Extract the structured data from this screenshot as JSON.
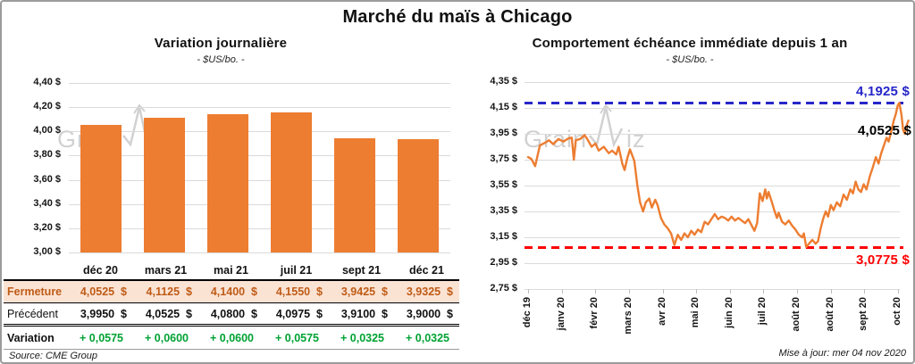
{
  "page": {
    "title": "Marché du maïs à Chicago"
  },
  "watermark": {
    "text_left": "Grain",
    "text_right": "iz"
  },
  "notes": {
    "source": "Source: CME Group",
    "updated": "Mise à jour: mer 04 nov 2020"
  },
  "colors": {
    "accent_orange": "#ED7D31",
    "high_blue": "#2626C9",
    "low_red": "#FF0000",
    "variation_green": "#00A233",
    "fermeture_bg": "#FBE3D4",
    "fermeture_text": "#BF5B16",
    "gridline": "#dadada"
  },
  "table": {
    "columns": [
      "déc 20",
      "mars 21",
      "mai 21",
      "juil 21",
      "sept 21",
      "déc 21"
    ],
    "rows": [
      {
        "key": "fermeture",
        "label": "Fermeture",
        "values": [
          "4,0525  $",
          "4,1125  $",
          "4,1400  $",
          "4,1550  $",
          "3,9425  $",
          "3,9325  $"
        ]
      },
      {
        "key": "precedent",
        "label": "Précédent",
        "values": [
          "3,9950  $",
          "4,0525  $",
          "4,0800  $",
          "4,0975  $",
          "3,9100  $",
          "3,9000  $"
        ]
      },
      {
        "key": "variation",
        "label": "Variation",
        "values": [
          "+ 0,0575",
          "+ 0,0600",
          "+ 0,0600",
          "+ 0,0575",
          "+ 0,0325",
          "+ 0,0325"
        ]
      }
    ]
  },
  "chart_data": [
    {
      "type": "bar",
      "title": "Variation journalière",
      "subtitle": "- $US/bo. -",
      "categories": [
        "déc 20",
        "mars 21",
        "mai 21",
        "juil 21",
        "sept 21",
        "déc 21"
      ],
      "values": [
        4.0525,
        4.1125,
        4.14,
        4.155,
        3.9425,
        3.9325
      ],
      "ylim": [
        3.0,
        4.4
      ],
      "ytick_labels": [
        "4,40 $",
        "4,20 $",
        "4,00 $",
        "3,80 $",
        "3,60 $",
        "3,40 $",
        "3,20 $",
        "3,00 $"
      ],
      "grid": true,
      "bar_color": "#ED7D31"
    },
    {
      "type": "line",
      "title": "Comportement échéance immédiate depuis 1 an",
      "subtitle": "- $US/bo. -",
      "x_tick_labels": [
        "déc 19",
        "janv 20",
        "févr 20",
        "mars 20",
        "avr 20",
        "mai 20",
        "juin 20",
        "juil 20",
        "août 20",
        "août 20",
        "sept 20",
        "oct 20"
      ],
      "ylim": [
        2.75,
        4.35
      ],
      "ytick_labels": [
        "4,35 $",
        "4,15 $",
        "3,95 $",
        "3,75 $",
        "3,55 $",
        "3,35 $",
        "3,15 $",
        "2,95 $",
        "2,75 $"
      ],
      "grid": true,
      "line_color": "#ED7D31",
      "high_line": {
        "value": 4.1925,
        "label": "4,1925 $",
        "color": "#2626C9"
      },
      "low_line": {
        "value": 3.0775,
        "label": "3,0775 $",
        "color": "#FF0000"
      },
      "last_label": {
        "value": 4.0525,
        "label": "4,0525 $",
        "color": "#000000"
      },
      "points": [
        [
          0,
          3.77
        ],
        [
          0.1,
          3.755
        ],
        [
          0.21,
          3.7
        ],
        [
          0.35,
          3.86
        ],
        [
          0.5,
          3.88
        ],
        [
          0.62,
          3.9
        ],
        [
          0.75,
          3.87
        ],
        [
          0.9,
          3.91
        ],
        [
          1.05,
          3.89
        ],
        [
          1.2,
          3.915
        ],
        [
          1.3,
          3.92
        ],
        [
          1.36,
          3.75
        ],
        [
          1.42,
          3.9
        ],
        [
          1.55,
          3.91
        ],
        [
          1.62,
          3.925
        ],
        [
          1.68,
          3.94
        ],
        [
          1.76,
          3.91
        ],
        [
          1.89,
          3.85
        ],
        [
          2.0,
          3.875
        ],
        [
          2.1,
          3.82
        ],
        [
          2.25,
          3.85
        ],
        [
          2.4,
          3.8
        ],
        [
          2.5,
          3.82
        ],
        [
          2.62,
          3.79
        ],
        [
          2.69,
          3.85
        ],
        [
          2.8,
          3.72
        ],
        [
          2.87,
          3.67
        ],
        [
          2.95,
          3.76
        ],
        [
          3.03,
          3.83
        ],
        [
          3.1,
          3.78
        ],
        [
          3.16,
          3.74
        ],
        [
          3.25,
          3.55
        ],
        [
          3.33,
          3.42
        ],
        [
          3.42,
          3.35
        ],
        [
          3.5,
          3.42
        ],
        [
          3.6,
          3.45
        ],
        [
          3.68,
          3.38
        ],
        [
          3.78,
          3.44
        ],
        [
          3.85,
          3.4
        ],
        [
          3.95,
          3.3
        ],
        [
          4.05,
          3.25
        ],
        [
          4.15,
          3.22
        ],
        [
          4.25,
          3.18
        ],
        [
          4.35,
          3.09
        ],
        [
          4.45,
          3.17
        ],
        [
          4.55,
          3.13
        ],
        [
          4.65,
          3.18
        ],
        [
          4.75,
          3.15
        ],
        [
          4.85,
          3.2
        ],
        [
          4.95,
          3.17
        ],
        [
          5.05,
          3.21
        ],
        [
          5.15,
          3.19
        ],
        [
          5.25,
          3.27
        ],
        [
          5.35,
          3.25
        ],
        [
          5.45,
          3.29
        ],
        [
          5.55,
          3.33
        ],
        [
          5.65,
          3.29
        ],
        [
          5.75,
          3.31
        ],
        [
          5.85,
          3.3
        ],
        [
          5.95,
          3.28
        ],
        [
          6.05,
          3.31
        ],
        [
          6.15,
          3.28
        ],
        [
          6.25,
          3.3
        ],
        [
          6.35,
          3.28
        ],
        [
          6.45,
          3.26
        ],
        [
          6.55,
          3.29
        ],
        [
          6.65,
          3.24
        ],
        [
          6.73,
          3.2
        ],
        [
          6.81,
          3.26
        ],
        [
          6.89,
          3.49
        ],
        [
          6.97,
          3.43
        ],
        [
          7.05,
          3.52
        ],
        [
          7.1,
          3.45
        ],
        [
          7.15,
          3.5
        ],
        [
          7.25,
          3.42
        ],
        [
          7.32,
          3.36
        ],
        [
          7.4,
          3.3
        ],
        [
          7.45,
          3.34
        ],
        [
          7.55,
          3.27
        ],
        [
          7.65,
          3.25
        ],
        [
          7.75,
          3.28
        ],
        [
          7.85,
          3.24
        ],
        [
          7.95,
          3.21
        ],
        [
          8.05,
          3.17
        ],
        [
          8.15,
          3.15
        ],
        [
          8.2,
          3.18
        ],
        [
          8.27,
          3.075
        ],
        [
          8.35,
          3.1
        ],
        [
          8.45,
          3.13
        ],
        [
          8.55,
          3.1
        ],
        [
          8.62,
          3.12
        ],
        [
          8.7,
          3.22
        ],
        [
          8.78,
          3.3
        ],
        [
          8.85,
          3.35
        ],
        [
          8.92,
          3.31
        ],
        [
          9.0,
          3.4
        ],
        [
          9.08,
          3.36
        ],
        [
          9.18,
          3.42
        ],
        [
          9.28,
          3.39
        ],
        [
          9.38,
          3.48
        ],
        [
          9.48,
          3.44
        ],
        [
          9.58,
          3.52
        ],
        [
          9.66,
          3.49
        ],
        [
          9.74,
          3.58
        ],
        [
          9.82,
          3.52
        ],
        [
          9.9,
          3.5
        ],
        [
          9.98,
          3.56
        ],
        [
          10.06,
          3.52
        ],
        [
          10.16,
          3.62
        ],
        [
          10.26,
          3.7
        ],
        [
          10.34,
          3.77
        ],
        [
          10.42,
          3.72
        ],
        [
          10.5,
          3.8
        ],
        [
          10.58,
          3.86
        ],
        [
          10.66,
          3.92
        ],
        [
          10.72,
          3.89
        ],
        [
          10.8,
          3.97
        ],
        [
          10.87,
          4.05
        ],
        [
          10.93,
          4.1
        ],
        [
          10.99,
          4.17
        ],
        [
          11.04,
          4.19
        ],
        [
          11.1,
          4.1
        ],
        [
          11.15,
          3.98
        ],
        [
          11.2,
          3.95
        ],
        [
          11.26,
          4.02
        ],
        [
          11.31,
          4.0525
        ]
      ]
    }
  ]
}
